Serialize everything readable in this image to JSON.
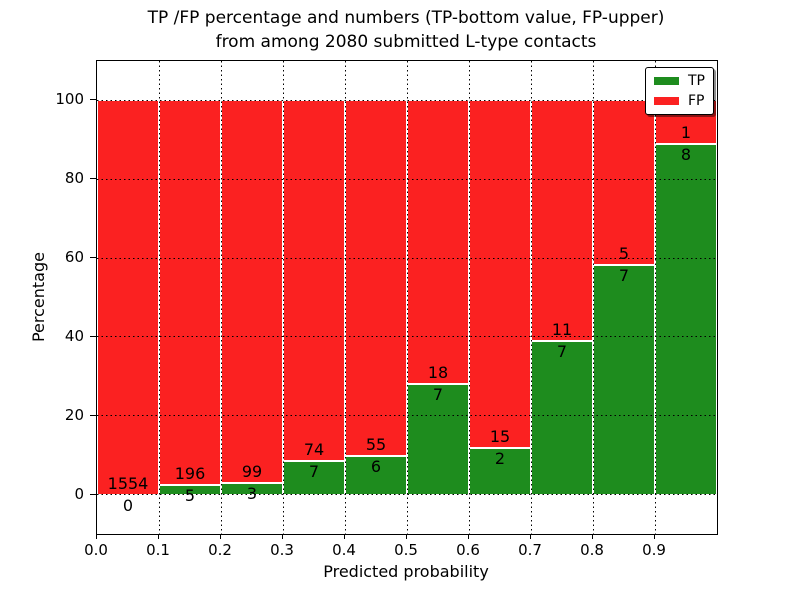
{
  "chart_data": {
    "type": "bar",
    "stacked": true,
    "normalized_to_percent": true,
    "title_line1": "TP /FP percentage and numbers (TP-bottom value, FP-upper)",
    "title_line2": "from among 2080 submitted L-type contacts",
    "xlabel": "Predicted probability",
    "ylabel": "Percentage",
    "total_contacts": 2080,
    "xlim": [
      0.0,
      1.0
    ],
    "ylim": [
      -10,
      110
    ],
    "bin_width": 0.1,
    "bins": [
      "0.0-0.1",
      "0.1-0.2",
      "0.2-0.3",
      "0.3-0.4",
      "0.4-0.5",
      "0.5-0.6",
      "0.6-0.7",
      "0.7-0.8",
      "0.8-0.9",
      "0.9-1.0"
    ],
    "xtick_labels": [
      "0.0",
      "0.1",
      "0.2",
      "0.3",
      "0.4",
      "0.5",
      "0.6",
      "0.7",
      "0.8",
      "0.9"
    ],
    "yticks": [
      0,
      20,
      40,
      60,
      80,
      100
    ],
    "grid": true,
    "grid_style": "dotted",
    "series": [
      {
        "name": "TP",
        "color": "#1e8c1e",
        "counts": [
          0,
          5,
          3,
          7,
          6,
          7,
          2,
          7,
          7,
          8
        ]
      },
      {
        "name": "FP",
        "color": "#fb2121",
        "counts": [
          1554,
          196,
          99,
          74,
          55,
          18,
          15,
          11,
          5,
          1
        ]
      }
    ],
    "tp_percent": [
      0.0,
      2.49,
      2.94,
      8.64,
      9.84,
      28.0,
      11.76,
      38.89,
      58.33,
      88.89
    ],
    "legend": {
      "position": "upper right",
      "entries": [
        "TP",
        "FP"
      ]
    },
    "bar_edge_color": "#ffffff",
    "axis_color": "#000000",
    "background_color": "#ffffff"
  }
}
